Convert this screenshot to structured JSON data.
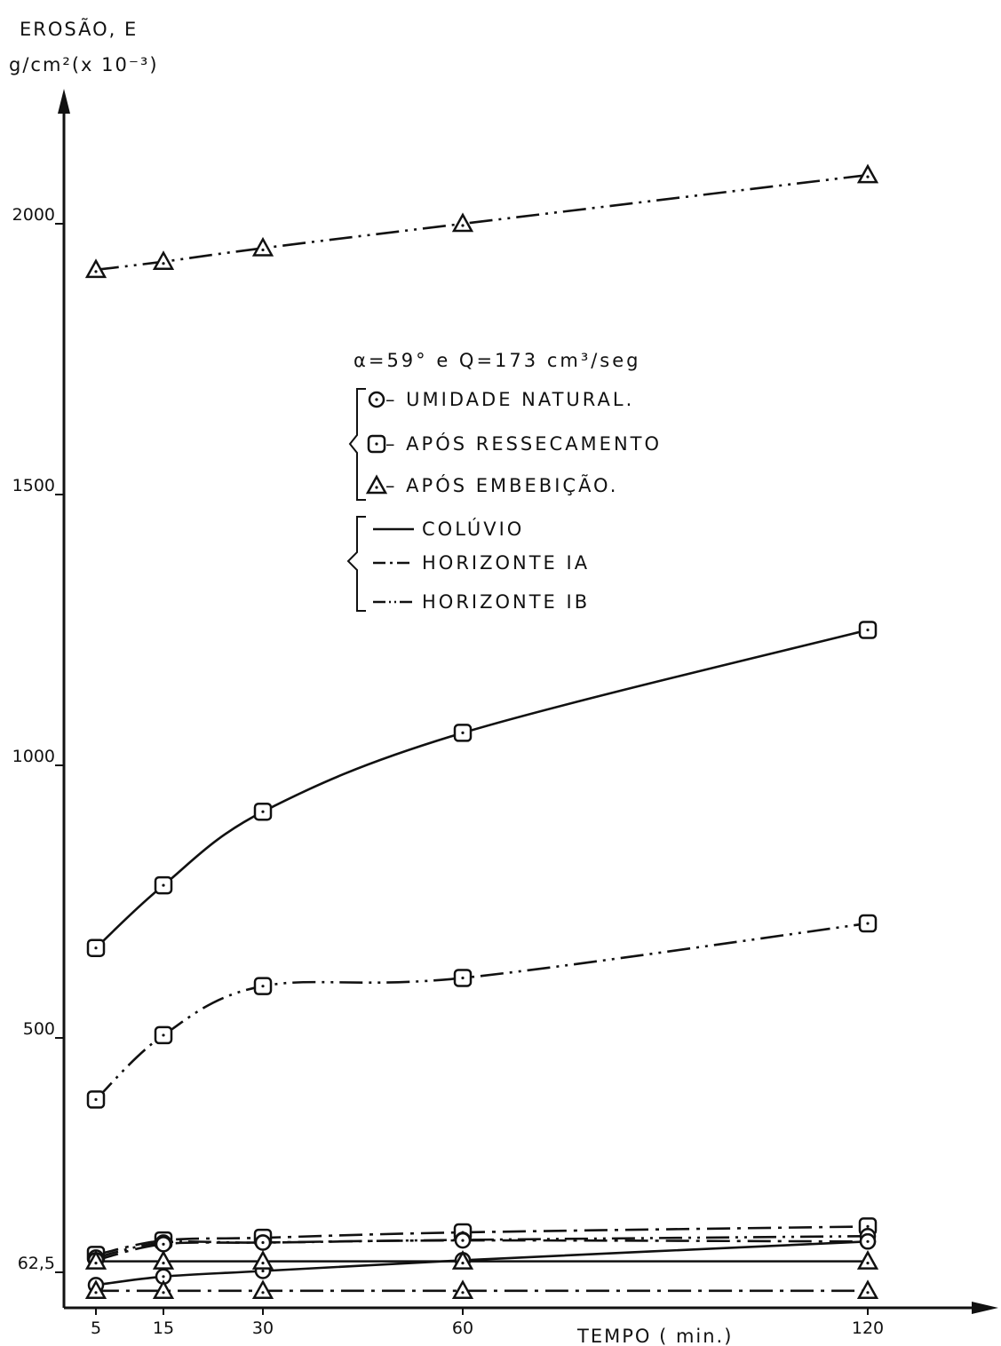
{
  "chart_data": {
    "type": "line",
    "ylabel_line1": "EROSÃO, E",
    "ylabel_line2": "g/cm²(x 10⁻³)",
    "xlabel": "TEMPO ( min.)",
    "x": [
      5,
      15,
      30,
      60,
      120
    ],
    "x_tick_labels": [
      "5",
      "15",
      "30",
      "60",
      "120"
    ],
    "y_ticks": [
      62.5,
      500,
      1000,
      1500,
      2000
    ],
    "y_tick_labels": [
      "62,5",
      "500",
      "1000",
      "1500",
      "2000"
    ],
    "legend": {
      "condition": "α=59° e Q=173 cm³/seg",
      "markers": [
        {
          "symbol": "circle-dot",
          "label": "– UMIDADE NATURAL."
        },
        {
          "symbol": "square-dot",
          "label": "– APÓS RESSECAMENTO"
        },
        {
          "symbol": "triangle-dot",
          "label": "– APÓS EMBEBIÇÃO."
        }
      ],
      "lines": [
        {
          "style": "solid",
          "label": "COLÚVIO"
        },
        {
          "style": "dash-dot",
          "label": "HORIZONTE IA"
        },
        {
          "style": "dash-dot-dot",
          "label": "HORIZONTE IB"
        }
      ]
    },
    "series": [
      {
        "marker": "triangle-dot",
        "line": "dash-dot-dot",
        "values": [
          1915,
          1930,
          1955,
          2000,
          2090
        ]
      },
      {
        "marker": "square-dot",
        "line": "solid",
        "values": [
          665,
          780,
          915,
          1060,
          1250
        ]
      },
      {
        "marker": "square-dot",
        "line": "dash-dot-dot",
        "values": [
          385,
          505,
          595,
          610,
          710
        ]
      },
      {
        "marker": "square-dot",
        "line": "dash-dot",
        "values": [
          95,
          122,
          127,
          137,
          148
        ]
      },
      {
        "marker": "circle-dot",
        "line": "dash-dot-dot",
        "values": [
          90,
          118,
          118,
          123,
          130
        ]
      },
      {
        "marker": "circle-dot",
        "line": "dash-dot",
        "values": [
          85,
          115,
          118,
          122,
          120
        ]
      },
      {
        "marker": "circle-dot",
        "line": "solid",
        "values": [
          40,
          55,
          65,
          85,
          120
        ]
      },
      {
        "marker": "triangle-dot",
        "line": "solid",
        "values": [
          83,
          83,
          83,
          83,
          83
        ]
      },
      {
        "marker": "triangle-dot",
        "line": "dash-dot",
        "values": [
          30,
          30,
          30,
          30,
          30
        ]
      }
    ],
    "colors": {
      "ink": "#111111",
      "background": "#ffffff"
    }
  }
}
